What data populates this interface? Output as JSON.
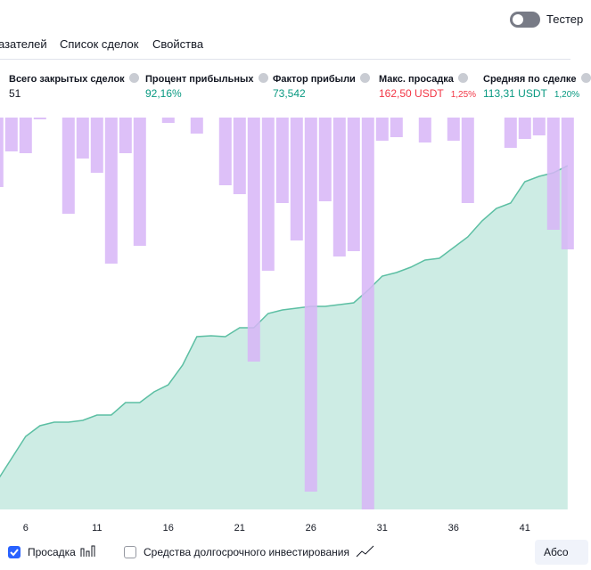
{
  "header": {
    "toggle_label": "Тестер"
  },
  "tabs": [
    "азателей",
    "Список сделок",
    "Свойства"
  ],
  "metrics": [
    {
      "label": "Всего закрытых сделок",
      "value": "51",
      "color": "#131722"
    },
    {
      "label": "Процент прибыльных",
      "value": "92,16%",
      "color": "#089981"
    },
    {
      "label": "Фактор прибыли",
      "value": "73,542",
      "color": "#089981"
    },
    {
      "label": "Макс. просадка",
      "value": "162,50 USDT",
      "sub": "1,25%",
      "color": "#f23645"
    },
    {
      "label": "Средняя по сделке",
      "value": "113,31 USDT",
      "sub": "1,20%",
      "color": "#089981"
    }
  ],
  "chart_data": {
    "type": "combo",
    "x": [
      4,
      5,
      6,
      7,
      8,
      9,
      10,
      11,
      12,
      13,
      14,
      15,
      16,
      17,
      18,
      19,
      20,
      21,
      22,
      23,
      24,
      25,
      26,
      27,
      28,
      29,
      30,
      31,
      32,
      33,
      34,
      35,
      36,
      37,
      38,
      39,
      40,
      41,
      42,
      43,
      44
    ],
    "xlim": [
      4.2,
      44.2
    ],
    "xticks": [
      6,
      11,
      16,
      21,
      26,
      31,
      36,
      41
    ],
    "ylim": [
      0,
      440
    ],
    "y2lim": [
      440,
      0
    ],
    "series": [
      {
        "name": "Просадка",
        "type": "bar",
        "axis": "y2",
        "color": "#d7b5f7",
        "values": [
          78,
          38,
          40,
          2,
          0,
          108,
          46,
          62,
          164,
          40,
          144,
          0,
          6,
          0,
          18,
          0,
          76,
          86,
          274,
          172,
          96,
          138,
          420,
          94,
          156,
          150,
          440,
          26,
          22,
          0,
          28,
          0,
          26,
          96,
          0,
          0,
          34,
          24,
          20,
          126,
          148
        ]
      },
      {
        "type": "area",
        "color": "#5cbfa3",
        "fill": "#cdece4",
        "values": [
          32,
          57,
          82,
          94,
          98,
          98,
          100,
          106,
          106,
          120,
          120,
          132,
          140,
          162,
          194,
          195,
          194,
          204,
          204,
          220,
          224,
          226,
          228,
          228,
          230,
          232,
          246,
          262,
          266,
          272,
          280,
          282,
          294,
          306,
          324,
          338,
          344,
          368,
          374,
          378,
          386
        ]
      }
    ]
  },
  "footer": {
    "options": [
      {
        "checked": true
      },
      {
        "label": "Средства долгосрочного инвестирования",
        "checked": false
      }
    ],
    "button": "Абсо"
  }
}
